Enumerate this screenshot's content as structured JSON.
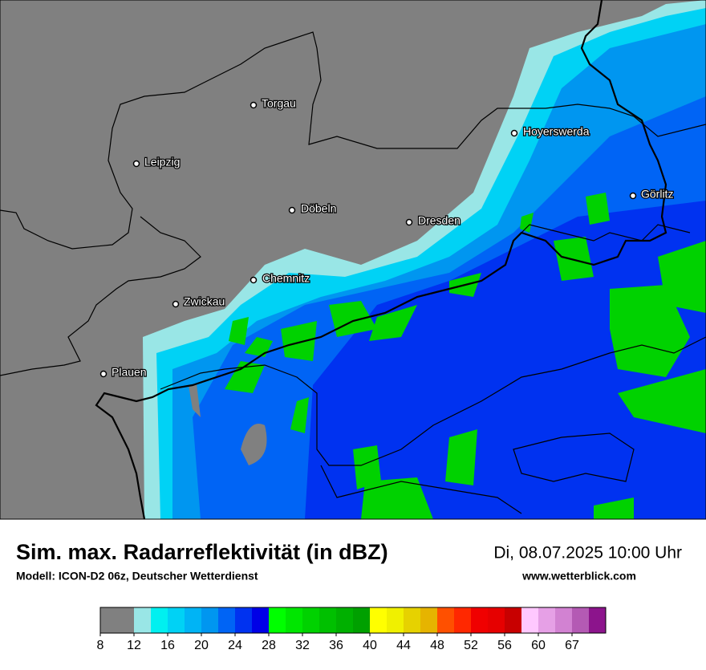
{
  "map": {
    "cities": [
      "Torgau",
      "Leipzig",
      "Hoyerswerda",
      "Döbeln",
      "Dresden",
      "Görlitz",
      "Chemnitz",
      "Zwickau",
      "Plauen"
    ]
  },
  "footer": {
    "title": "Sim. max. Radarreflektivität (in dBZ)",
    "model": "Modell: ICON-D2 06z, Deutscher Wetterdienst",
    "datetime": "Di, 08.07.2025 10:00 Uhr",
    "website": "www.wetterblick.com"
  },
  "legend": {
    "ticks": [
      8,
      12,
      16,
      20,
      24,
      28,
      32,
      36,
      40,
      44,
      48,
      52,
      56,
      60,
      67
    ],
    "colors": [
      "#808080",
      "#99e6e6",
      "#00f0f0",
      "#00d2f5",
      "#00b4f5",
      "#0096f0",
      "#0064f5",
      "#0032f0",
      "#0000e6",
      "#00ff00",
      "#00e600",
      "#00d200",
      "#00c000",
      "#00b000",
      "#00a000",
      "#ffff00",
      "#f0f000",
      "#e6d200",
      "#e6b400",
      "#ff5000",
      "#ff2800",
      "#f00000",
      "#e60000",
      "#c80000",
      "#ffc8ff",
      "#e6a0e6",
      "#d282d2",
      "#b45ab4",
      "#8c148c"
    ]
  }
}
